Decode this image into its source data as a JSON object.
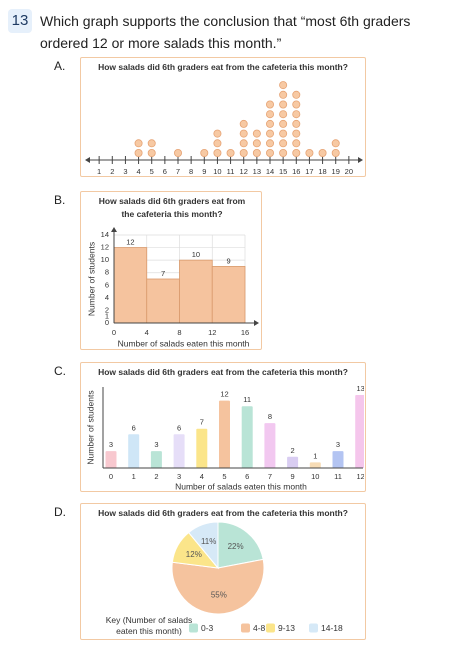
{
  "question": {
    "number": "13",
    "text": "Which graph supports the conclusion that “most 6th graders ordered 12 or more salads this month.”"
  },
  "options": [
    "A.",
    "B.",
    "C.",
    "D."
  ],
  "chart_data": [
    {
      "type": "dot",
      "title": "How salads did 6th graders eat from the cafeteria this month?",
      "x": [
        1,
        2,
        3,
        4,
        5,
        6,
        7,
        8,
        9,
        10,
        11,
        12,
        13,
        14,
        15,
        16,
        17,
        18,
        19,
        20
      ],
      "values": [
        0,
        0,
        0,
        2,
        2,
        0,
        1,
        0,
        1,
        3,
        1,
        4,
        3,
        6,
        8,
        7,
        1,
        1,
        2,
        0
      ],
      "xlim": [
        0,
        21
      ],
      "xticks": [
        1,
        2,
        3,
        4,
        5,
        6,
        7,
        8,
        9,
        10,
        11,
        12,
        13,
        14,
        15,
        16,
        17,
        18,
        19,
        20
      ],
      "color": "#f7c9a3"
    },
    {
      "type": "histogram",
      "title": "How salads did 6th graders eat from the cafeteria this month?",
      "bins": [
        0,
        4,
        8,
        12,
        16
      ],
      "values": [
        12,
        7,
        10,
        9
      ],
      "color": "#f5c39e",
      "xlim": [
        0,
        16
      ],
      "xticks": [
        0,
        4,
        8,
        12,
        16
      ],
      "ylim": [
        0,
        14
      ],
      "yticks": [
        0,
        1,
        2,
        4,
        6,
        8,
        10,
        12,
        14
      ],
      "grid": true,
      "xlabel": "Number of salads eaten this month",
      "ylabel": "Number of students"
    },
    {
      "type": "bar",
      "title": "How salads did 6th graders eat from the cafeteria this month?",
      "categories": [
        "0",
        "1",
        "2",
        "3",
        "4",
        "5",
        "6",
        "7",
        "9",
        "10",
        "11",
        "12"
      ],
      "values": [
        3,
        6,
        3,
        6,
        7,
        12,
        11,
        8,
        2,
        1,
        3,
        13
      ],
      "colors": [
        "#f8c8cf",
        "#cfe6f7",
        "#b9e4d6",
        "#e6def8",
        "#fbe58a",
        "#f5c39e",
        "#b9e4d6",
        "#f2c8f0",
        "#d9cdf2",
        "#f7dcb5",
        "#b3c4f2",
        "#f5c6ec"
      ],
      "ylim": [
        0,
        13
      ],
      "xlabel": "Number of salads eaten this month",
      "ylabel": "Number of students"
    },
    {
      "type": "pie",
      "title": "How salads did 6th graders eat from the cafeteria this month?",
      "categories": [
        "0-3",
        "4-8",
        "9-13",
        "14-18"
      ],
      "values": [
        22,
        55,
        12,
        11
      ],
      "value_labels": [
        "22%",
        "55%",
        "12%",
        "11%"
      ],
      "colors": [
        "#b9e4d6",
        "#f5c39e",
        "#fbe58a",
        "#d6e9f7"
      ],
      "legend_title": "Key (Number of salads eaten this month)"
    }
  ]
}
